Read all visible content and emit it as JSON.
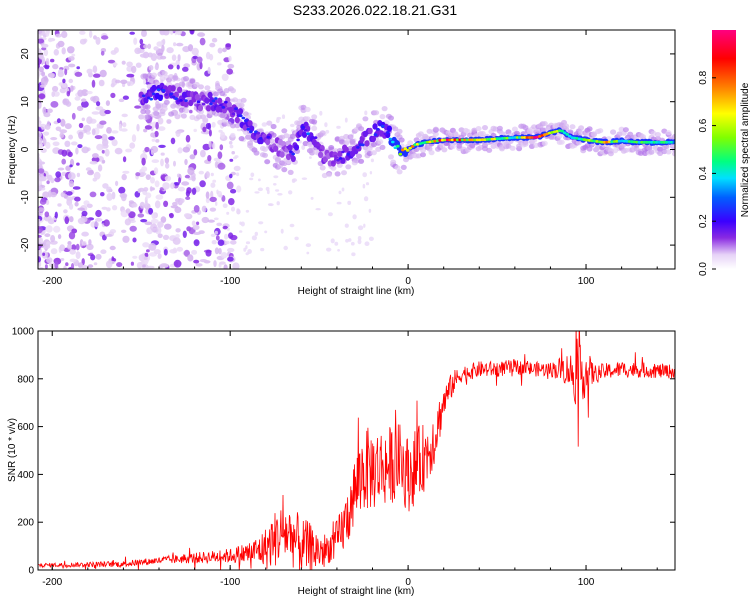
{
  "title": "S233.2026.022.18.21.G31",
  "chart_data": [
    {
      "type": "heatmap",
      "title": "S233.2026.022.18.21.G31",
      "xlabel": "Height of straight line (km)",
      "ylabel": "Frequency (Hz)",
      "xlim": [
        -208,
        150
      ],
      "ylim": [
        -25,
        25
      ],
      "xticks": [
        -200,
        -100,
        0,
        100
      ],
      "yticks": [
        -20,
        -10,
        0,
        10,
        20
      ],
      "colorbar": {
        "label": "Normalized spectral amplitude",
        "range": [
          0,
          1
        ],
        "ticks": [
          "0.0",
          "0.2",
          "0.4",
          "0.6",
          "0.8"
        ],
        "colors": [
          "#ffffff",
          "#d7b8f0",
          "#8a2be2",
          "#3a00ff",
          "#0060ff",
          "#00e0ff",
          "#00ff80",
          "#80ff00",
          "#ffff00",
          "#ff8000",
          "#ff0000",
          "#ff0080"
        ]
      },
      "ridge": {
        "x": [
          -148,
          -140,
          -132,
          -124,
          -116,
          -108,
          -100,
          -92,
          -84,
          -76,
          -70,
          -64,
          -60,
          -56,
          -52,
          -48,
          -44,
          -40,
          -36,
          -32,
          -28,
          -24,
          -20,
          -16,
          -12,
          -8,
          -4,
          0,
          4,
          10,
          20,
          40,
          60,
          72,
          80,
          86,
          92,
          100,
          110,
          120,
          130,
          150
        ],
        "y": [
          11,
          12,
          11.5,
          10.5,
          10,
          10,
          9,
          6,
          3,
          1,
          0,
          -1,
          5,
          4,
          2,
          -1,
          -2,
          -2,
          -1,
          0,
          1,
          2,
          3,
          4.5,
          4,
          1,
          -1,
          0,
          1,
          1.5,
          2,
          2,
          2.5,
          2.5,
          3.5,
          4,
          2.5,
          2,
          1.5,
          1.8,
          1.5,
          1.5
        ],
        "amplitude": [
          0.3,
          0.35,
          0.3,
          0.3,
          0.25,
          0.3,
          0.25,
          0.3,
          0.3,
          0.25,
          0.2,
          0.3,
          0.3,
          0.35,
          0.3,
          0.25,
          0.25,
          0.25,
          0.3,
          0.3,
          0.3,
          0.3,
          0.3,
          0.35,
          0.3,
          0.55,
          0.7,
          0.9,
          0.7,
          0.6,
          0.95,
          0.75,
          0.6,
          0.95,
          0.8,
          0.65,
          0.5,
          0.6,
          0.85,
          0.55,
          0.6,
          0.5
        ]
      }
    },
    {
      "type": "line",
      "xlabel": "Height of straight line (km)",
      "ylabel": "SNR (10 * v/v)",
      "xlim": [
        -208,
        150
      ],
      "ylim": [
        0,
        1000
      ],
      "xticks": [
        -200,
        -100,
        0,
        100
      ],
      "yticks": [
        0,
        200,
        400,
        600,
        800,
        1000
      ],
      "color": "#ff0000",
      "envelope_x": [
        -208,
        -160,
        -140,
        -120,
        -100,
        -90,
        -80,
        -75,
        -70,
        -65,
        -60,
        -55,
        -50,
        -45,
        -40,
        -35,
        -30,
        -25,
        -20,
        -15,
        -10,
        -5,
        0,
        5,
        10,
        15,
        20,
        25,
        30,
        40,
        50,
        60,
        70,
        80,
        90,
        95,
        98,
        102,
        110,
        120,
        150
      ],
      "envelope_y": [
        20,
        25,
        40,
        50,
        60,
        70,
        90,
        130,
        160,
        140,
        100,
        90,
        80,
        90,
        120,
        200,
        330,
        420,
        420,
        430,
        440,
        460,
        400,
        440,
        480,
        560,
        700,
        780,
        820,
        840,
        840,
        850,
        840,
        840,
        840,
        800,
        830,
        820,
        830,
        840,
        830
      ],
      "noise_amp_x": [
        -208,
        -140,
        -100,
        -85,
        -75,
        -65,
        -55,
        -45,
        -35,
        -25,
        -15,
        -5,
        5,
        15,
        20,
        30,
        80,
        90,
        95,
        100,
        105,
        150
      ],
      "noise_amp": [
        8,
        15,
        30,
        60,
        120,
        130,
        110,
        60,
        120,
        180,
        170,
        160,
        160,
        120,
        70,
        35,
        30,
        70,
        130,
        110,
        35,
        30
      ]
    }
  ]
}
